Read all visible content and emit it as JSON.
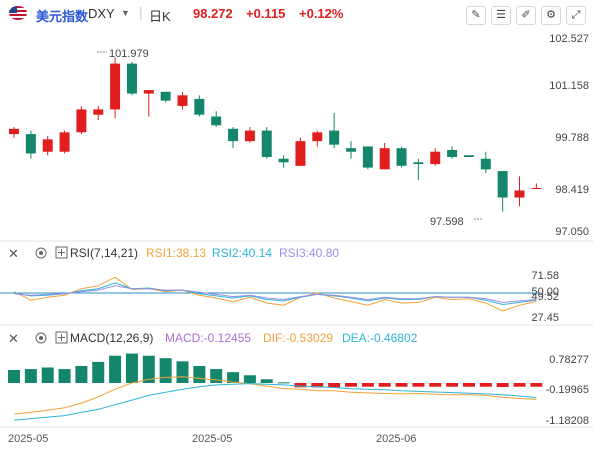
{
  "header": {
    "name": "美元指数",
    "symbol": "DXY",
    "period": "日K",
    "price": "98.272",
    "change": "+0.115",
    "change_pct": "+0.12%",
    "up_color": "#e01e1e",
    "down_color": "#14866c",
    "toolbar_icons": [
      "pen-drawing-icon",
      "drawing-tools-icon",
      "brush-icon",
      "settings-icon",
      "fullscreen-expand-icon",
      "close-icon"
    ]
  },
  "rsi": {
    "label": "RSI(7,14,21)",
    "rsi1": "RSI1:38.13",
    "rsi2": "RSI2:40.14",
    "rsi3": "RSI3:40.80",
    "colors": [
      "#f2a23a",
      "#2db5d6",
      "#9b8de8"
    ],
    "ticks": [
      "71.58",
      "49.52",
      "50.00",
      "27.45"
    ]
  },
  "macd": {
    "label": "MACD(12,26,9)",
    "macd": "MACD:-0.12455",
    "dif": "DIF:-0.53029",
    "dea": "DEA:-0.46802",
    "colors": [
      "#a86fd1",
      "#f2a23a",
      "#2db5d6"
    ],
    "ticks": [
      "0.78277",
      "-0.19965",
      "-1.18208"
    ]
  },
  "chart_data": {
    "type": "candlestick",
    "price_ticks": [
      "102.527",
      "101.158",
      "99.788",
      "98.419",
      "97.050"
    ],
    "ylim": [
      97.05,
      102.527
    ],
    "annotations": {
      "high": "101.979",
      "low": "97.598"
    },
    "x_labels": [
      "2025-05",
      "2025-05",
      "2025-06"
    ],
    "candles": [
      {
        "o": 99.8,
        "h": 100.0,
        "l": 99.7,
        "c": 99.95
      },
      {
        "o": 99.8,
        "h": 99.9,
        "l": 99.1,
        "c": 99.25
      },
      {
        "o": 99.3,
        "h": 99.75,
        "l": 99.2,
        "c": 99.65
      },
      {
        "o": 99.3,
        "h": 99.9,
        "l": 99.25,
        "c": 99.85
      },
      {
        "o": 99.85,
        "h": 100.6,
        "l": 99.8,
        "c": 100.5
      },
      {
        "o": 100.35,
        "h": 100.6,
        "l": 100.2,
        "c": 100.5
      },
      {
        "o": 100.5,
        "h": 101.98,
        "l": 100.25,
        "c": 101.8
      },
      {
        "o": 101.8,
        "h": 101.85,
        "l": 100.9,
        "c": 100.95
      },
      {
        "o": 100.95,
        "h": 101.05,
        "l": 100.3,
        "c": 101.05
      },
      {
        "o": 101.0,
        "h": 101.0,
        "l": 100.7,
        "c": 100.75
      },
      {
        "o": 100.6,
        "h": 101.0,
        "l": 100.5,
        "c": 100.9
      },
      {
        "o": 100.8,
        "h": 100.9,
        "l": 100.3,
        "c": 100.35
      },
      {
        "o": 100.3,
        "h": 100.45,
        "l": 100.0,
        "c": 100.05
      },
      {
        "o": 99.95,
        "h": 100.0,
        "l": 99.4,
        "c": 99.6
      },
      {
        "o": 99.6,
        "h": 100.0,
        "l": 99.55,
        "c": 99.9
      },
      {
        "o": 99.9,
        "h": 100.0,
        "l": 99.1,
        "c": 99.15
      },
      {
        "o": 99.1,
        "h": 99.2,
        "l": 98.85,
        "c": 99.0
      },
      {
        "o": 98.9,
        "h": 99.7,
        "l": 98.9,
        "c": 99.6
      },
      {
        "o": 99.6,
        "h": 99.9,
        "l": 99.45,
        "c": 99.85
      },
      {
        "o": 99.9,
        "h": 100.4,
        "l": 99.4,
        "c": 99.5
      },
      {
        "o": 99.4,
        "h": 99.6,
        "l": 99.1,
        "c": 99.3
      },
      {
        "o": 99.45,
        "h": 99.45,
        "l": 98.8,
        "c": 98.85
      },
      {
        "o": 98.8,
        "h": 99.55,
        "l": 98.8,
        "c": 99.4
      },
      {
        "o": 99.4,
        "h": 99.45,
        "l": 98.85,
        "c": 98.9
      },
      {
        "o": 99.0,
        "h": 99.1,
        "l": 98.5,
        "c": 98.95
      },
      {
        "o": 98.95,
        "h": 99.4,
        "l": 98.9,
        "c": 99.3
      },
      {
        "o": 99.35,
        "h": 99.45,
        "l": 99.1,
        "c": 99.15
      },
      {
        "o": 99.2,
        "h": 99.2,
        "l": 99.15,
        "c": 99.15
      },
      {
        "o": 99.1,
        "h": 99.3,
        "l": 98.7,
        "c": 98.8
      },
      {
        "o": 98.75,
        "h": 98.75,
        "l": 97.6,
        "c": 98.0
      },
      {
        "o": 98.0,
        "h": 98.6,
        "l": 97.75,
        "c": 98.2
      },
      {
        "o": 98.27,
        "h": 98.4,
        "l": 98.25,
        "c": 98.27
      }
    ],
    "macd_hist": [
      0.42,
      0.45,
      0.5,
      0.45,
      0.55,
      0.68,
      0.88,
      0.95,
      0.88,
      0.8,
      0.7,
      0.55,
      0.45,
      0.35,
      0.25,
      0.12,
      0.02,
      -0.14,
      -0.14,
      -0.14,
      -0.12,
      -0.12,
      -0.12,
      -0.12,
      -0.12,
      -0.12,
      -0.12,
      -0.12,
      -0.12,
      -0.13,
      -0.12,
      -0.12
    ],
    "dif": [
      -1.0,
      -0.95,
      -0.88,
      -0.8,
      -0.65,
      -0.45,
      -0.2,
      0.0,
      0.12,
      0.18,
      0.2,
      0.15,
      0.1,
      0.03,
      -0.02,
      -0.1,
      -0.18,
      -0.2,
      -0.25,
      -0.25,
      -0.3,
      -0.32,
      -0.34,
      -0.35,
      -0.34,
      -0.36,
      -0.38,
      -0.38,
      -0.4,
      -0.46,
      -0.5,
      -0.53
    ],
    "dea": [
      -1.2,
      -1.15,
      -1.1,
      -1.05,
      -0.95,
      -0.85,
      -0.7,
      -0.55,
      -0.4,
      -0.3,
      -0.2,
      -0.12,
      -0.06,
      -0.04,
      -0.02,
      -0.04,
      -0.06,
      -0.1,
      -0.12,
      -0.15,
      -0.18,
      -0.2,
      -0.22,
      -0.25,
      -0.27,
      -0.29,
      -0.31,
      -0.33,
      -0.35,
      -0.38,
      -0.42,
      -0.47
    ],
    "rsi1": [
      52,
      40,
      44,
      47,
      56,
      60,
      72,
      55,
      56,
      52,
      54,
      47,
      43,
      38,
      44,
      36,
      33,
      44,
      50,
      43,
      38,
      33,
      41,
      36,
      37,
      44,
      41,
      42,
      36,
      25,
      33,
      38.13
    ],
    "rsi2": [
      50,
      46,
      47,
      49,
      53,
      56,
      64,
      56,
      57,
      53,
      54,
      49,
      46,
      43,
      46,
      41,
      39,
      44,
      48,
      46,
      43,
      39,
      43,
      41,
      41,
      45,
      44,
      44,
      40,
      34,
      37,
      40.14
    ],
    "rsi3": [
      49,
      47,
      48,
      49,
      52,
      54,
      60,
      56,
      56,
      54,
      54,
      51,
      48,
      45,
      47,
      43,
      41,
      45,
      48,
      47,
      44,
      41,
      44,
      42,
      42,
      45,
      44,
      44,
      42,
      37,
      39,
      40.8
    ]
  }
}
